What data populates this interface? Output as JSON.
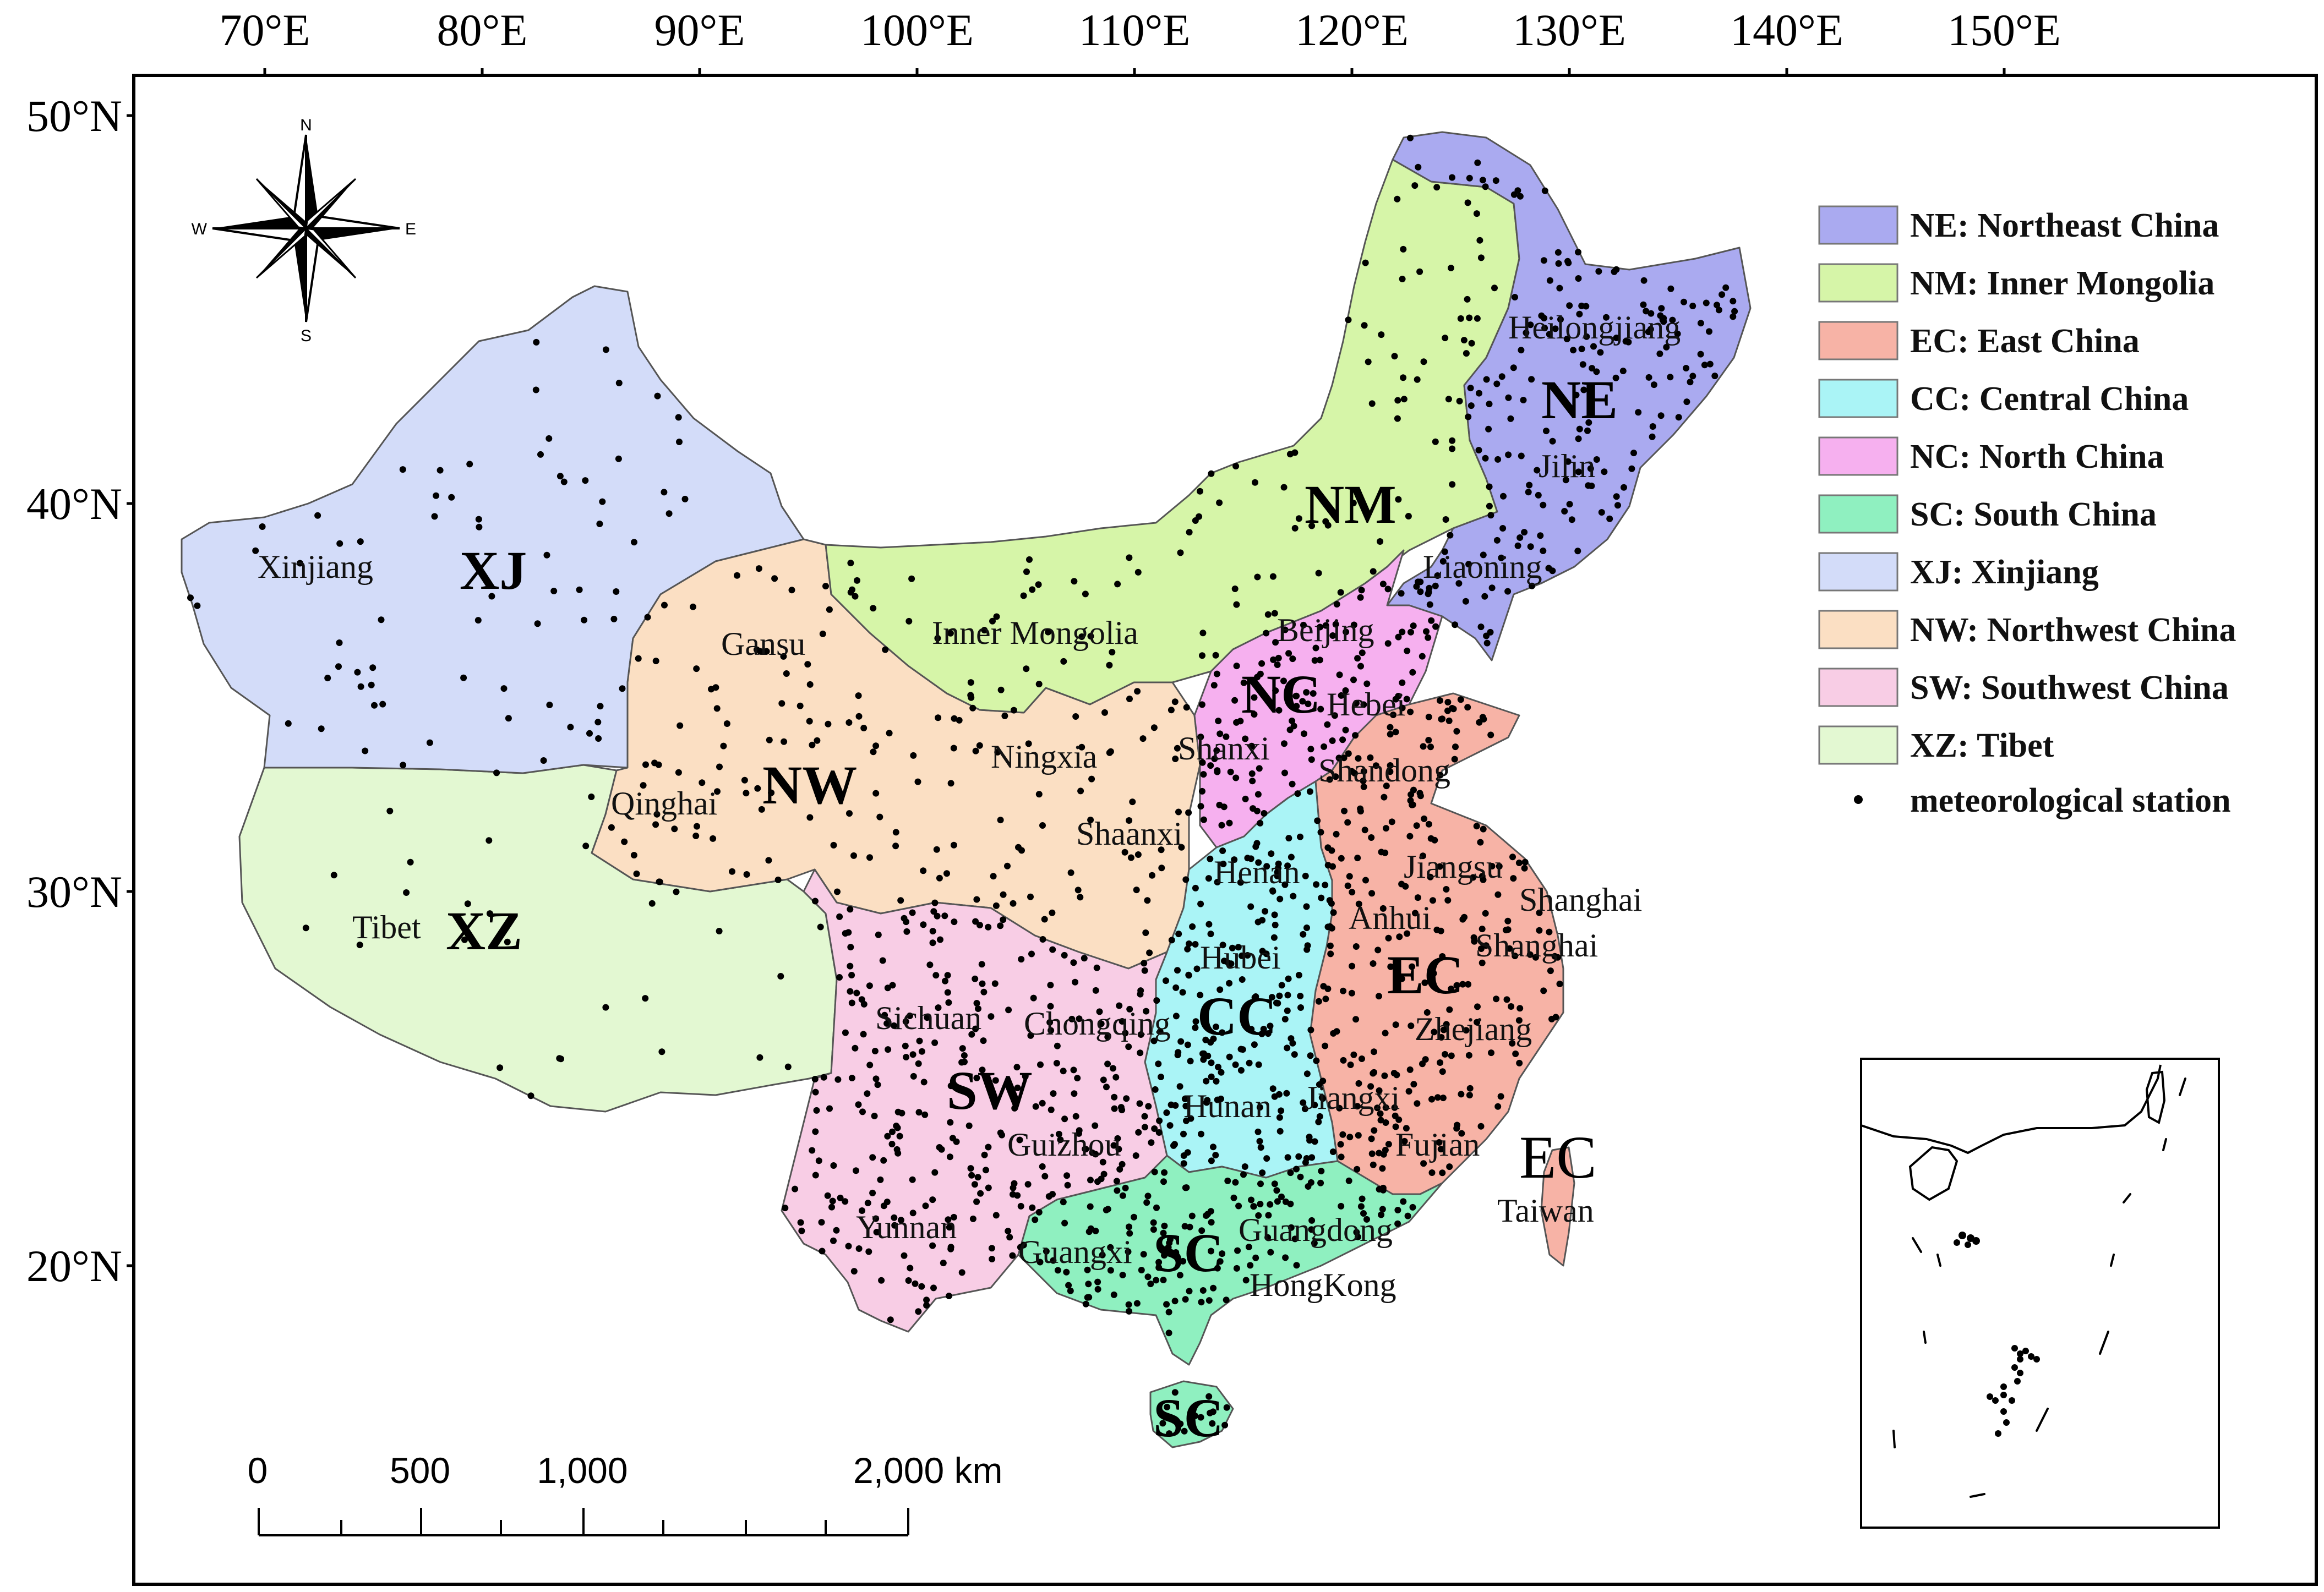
{
  "axes": {
    "lon_ticks": [
      "70°E",
      "80°E",
      "90°E",
      "100°E",
      "110°E",
      "120°E",
      "130°E",
      "140°E",
      "150°E"
    ],
    "lat_ticks": [
      "50°N",
      "40°N",
      "30°N",
      "20°N"
    ]
  },
  "compass": {
    "n": "N",
    "s": "S",
    "e": "E",
    "w": "W",
    "icon": "compass-rose-icon"
  },
  "legend": {
    "items": [
      {
        "label": "NE: Northeast China",
        "color": "#aaaaf0"
      },
      {
        "label": "NM: Inner Mongolia",
        "color": "#d6f5a8"
      },
      {
        "label": "EC: East China",
        "color": "#f7b3a6"
      },
      {
        "label": "CC: Central China",
        "color": "#aaf4f6"
      },
      {
        "label": "NC: North China",
        "color": "#f6b0ef"
      },
      {
        "label": "SC: South China",
        "color": "#8ff0c0"
      },
      {
        "label": "XJ: Xinjiang",
        "color": "#d3dcf9"
      },
      {
        "label": "NW: Northwest China",
        "color": "#fbdfc3"
      },
      {
        "label": "SW: Southwest China",
        "color": "#f8cde5"
      },
      {
        "label": "XZ: Tibet",
        "color": "#e3f8d2"
      }
    ],
    "station_label": "meteorological station"
  },
  "regions": {
    "ne": {
      "code": "NE",
      "color": "#aaaaf0"
    },
    "nm": {
      "code": "NM",
      "color": "#d6f5a8"
    },
    "ec": {
      "code": "EC",
      "color": "#f7b3a6"
    },
    "ec_taiwan": {
      "code": "EC"
    },
    "cc": {
      "code": "CC",
      "color": "#aaf4f6"
    },
    "nc": {
      "code": "NC",
      "color": "#f6b0ef"
    },
    "sc": {
      "code": "SC",
      "color": "#8ff0c0"
    },
    "sc_hainan": {
      "code": "SC"
    },
    "xj": {
      "code": "XJ",
      "color": "#d3dcf9"
    },
    "nw": {
      "code": "NW",
      "color": "#fbdfc3"
    },
    "sw": {
      "code": "SW",
      "color": "#f8cde5"
    },
    "xz": {
      "code": "XZ",
      "color": "#e3f8d2"
    }
  },
  "provinces": {
    "heilongjiang": "Heilongjiang",
    "jilin": "Jilin",
    "liaoning": "Liaoning",
    "xinjiang": "Xinjiang",
    "gansu": "Gansu",
    "inner_mongolia": "Inner Mongolia",
    "beijing": "Beijing",
    "hebei": "Hebei",
    "ningxia": "Ningxia",
    "shanxi": "Shanxi",
    "shandong": "Shandong",
    "qinghai": "Qinghai",
    "shaanxi": "Shaanxi",
    "henan": "Henan",
    "jiangsu": "Jiangsu",
    "shanghai": "Shanghai",
    "shanghai2": "Shanghai",
    "anhui": "Anhui",
    "tibet": "Tibet",
    "hubei": "Hubei",
    "sichuan": "Sichuan",
    "chongqing": "Chongqing",
    "zhejiang": "Zhejiang",
    "hunan": "Hunan",
    "jiangxi": "Jiangxi",
    "guizhou": "Guizhou",
    "fujian": "Fujian",
    "taiwan": "Taiwan",
    "yunnan": "Yunnan",
    "guangdong": "Guangdong",
    "guangxi": "Guangxi",
    "hongkong": "HongKong"
  },
  "scale_bar": {
    "labels": [
      "0",
      "500",
      "1,000",
      "2,000 km"
    ]
  }
}
